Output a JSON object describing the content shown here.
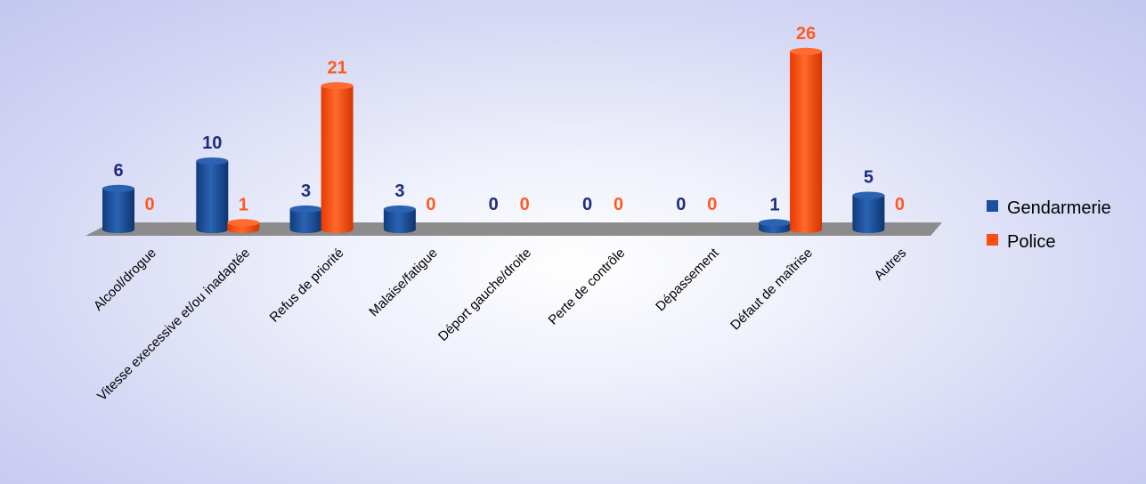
{
  "chart_data": {
    "type": "bar",
    "categories": [
      "Alcool/drogue",
      "Vitesse execessive et/ou inadaptée",
      "Refus de priorité",
      "Malaise/fatigue",
      "Déport gauche/droite",
      "Perte de contrôle",
      "Dépassement",
      "Défaut de maîtrise",
      "Autres"
    ],
    "series": [
      {
        "name": "Gendarmerie",
        "values": [
          6,
          10,
          3,
          3,
          0,
          0,
          0,
          1,
          5
        ],
        "color": "#1a4f9c",
        "label_color": "#1f2c7a"
      },
      {
        "name": "Police",
        "values": [
          0,
          1,
          21,
          0,
          0,
          0,
          0,
          26,
          0
        ],
        "color": "#ff4d12",
        "label_color": "#ff5a1f"
      }
    ],
    "ylim": [
      0,
      26
    ],
    "legend": "right",
    "grid": false,
    "three_d": true
  }
}
